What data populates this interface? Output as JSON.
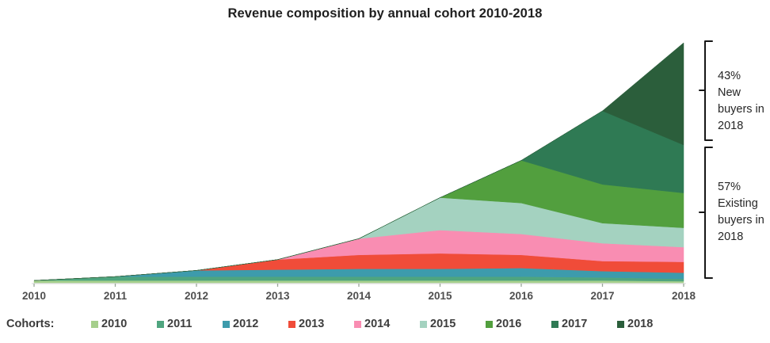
{
  "title": "Revenue composition by annual cohort 2010-2018",
  "chart_data": {
    "type": "area",
    "stacked": true,
    "title": "Revenue composition by annual cohort 2010-2018",
    "x": [
      2010,
      2011,
      2012,
      2013,
      2014,
      2015,
      2016,
      2017,
      2018
    ],
    "x_tick_labels": [
      "2010",
      "2011",
      "2012",
      "2013",
      "2014",
      "2015",
      "2016",
      "2017",
      "2018"
    ],
    "xlabel": "",
    "ylabel": "",
    "ylim": [
      0,
      312
    ],
    "grid": false,
    "legend_position": "bottom",
    "series": [
      {
        "name": "2010",
        "color": "#a6cf8c",
        "values": [
          3,
          3,
          3,
          3,
          3,
          3,
          3,
          3,
          2
        ]
      },
      {
        "name": "2011",
        "color": "#4fa57f",
        "values": [
          0,
          5,
          5,
          5,
          5,
          5,
          5,
          4,
          3
        ]
      },
      {
        "name": "2012",
        "color": "#3d9bac",
        "values": [
          0,
          0,
          8,
          9,
          10,
          10,
          11,
          8,
          8
        ]
      },
      {
        "name": "2013",
        "color": "#f04c39",
        "values": [
          0,
          0,
          0,
          13,
          18,
          20,
          17,
          13,
          14
        ]
      },
      {
        "name": "2014",
        "color": "#f98db2",
        "values": [
          0,
          0,
          0,
          0,
          21,
          30,
          27,
          23,
          19
        ]
      },
      {
        "name": "2015",
        "color": "#a4d2c0",
        "values": [
          0,
          0,
          0,
          0,
          0,
          42,
          40,
          26,
          25
        ]
      },
      {
        "name": "2016",
        "color": "#529f3e",
        "values": [
          0,
          0,
          0,
          0,
          0,
          0,
          55,
          50,
          45
        ]
      },
      {
        "name": "2017",
        "color": "#2f7a54",
        "values": [
          0,
          0,
          0,
          0,
          0,
          0,
          0,
          95,
          62
        ]
      },
      {
        "name": "2018",
        "color": "#2b5e3b",
        "values": [
          0,
          0,
          0,
          0,
          0,
          0,
          0,
          0,
          132
        ]
      }
    ]
  },
  "legend": {
    "label": "Cohorts:"
  },
  "annotations": {
    "new_buyers": {
      "text": "43%\nNew\nbuyers in\n2018"
    },
    "existing_buyers": {
      "text": "57%\nExisting\nbuyers in\n2018"
    }
  },
  "axis": {
    "tick_color": "#9aa79a",
    "line_color": "#d6d6d6",
    "label_color": "#4f4f4f"
  }
}
